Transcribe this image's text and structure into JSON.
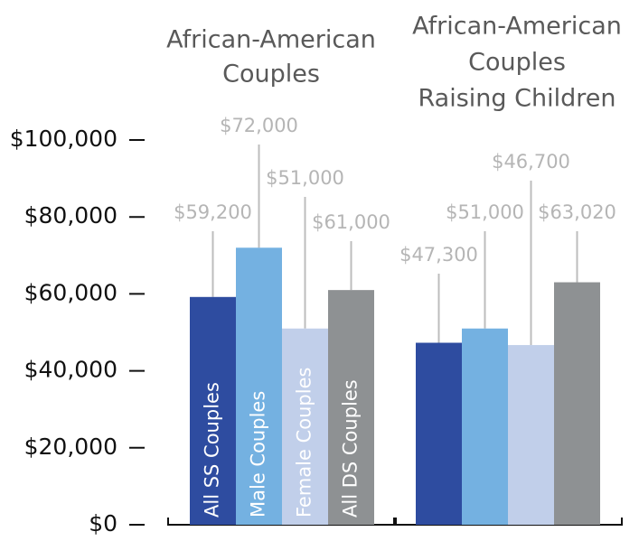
{
  "chart_data": {
    "type": "bar",
    "categories": [
      [
        "African-American",
        "Couples"
      ],
      [
        "African-American",
        "Couples",
        "Raising Children"
      ]
    ],
    "series": [
      {
        "name": "All SS Couples",
        "color": "#2e4ca0",
        "values": [
          59200,
          47300
        ],
        "value_labels": [
          "$59,200",
          "$47,300"
        ]
      },
      {
        "name": "Male Couples",
        "color": "#74b1e1",
        "values": [
          72000,
          51000
        ],
        "value_labels": [
          "$72,000",
          "$51,000"
        ]
      },
      {
        "name": "Female Couples",
        "color": "#c1cfea",
        "values": [
          51000,
          46700
        ],
        "value_labels": [
          "$51,000",
          "$46,700"
        ]
      },
      {
        "name": "All DS Couples",
        "color": "#8e9193",
        "values": [
          61000,
          63020
        ],
        "value_labels": [
          "$61,000",
          "$63,020"
        ]
      }
    ],
    "ylim": [
      0,
      100000
    ],
    "yticks": [
      {
        "value": 0,
        "label": "$0"
      },
      {
        "value": 20000,
        "label": "$20,000"
      },
      {
        "value": 40000,
        "label": "$40,000"
      },
      {
        "value": 60000,
        "label": "$60,000"
      },
      {
        "value": 80000,
        "label": "$80,000"
      },
      {
        "value": 100000,
        "label": "$100,000"
      }
    ]
  }
}
